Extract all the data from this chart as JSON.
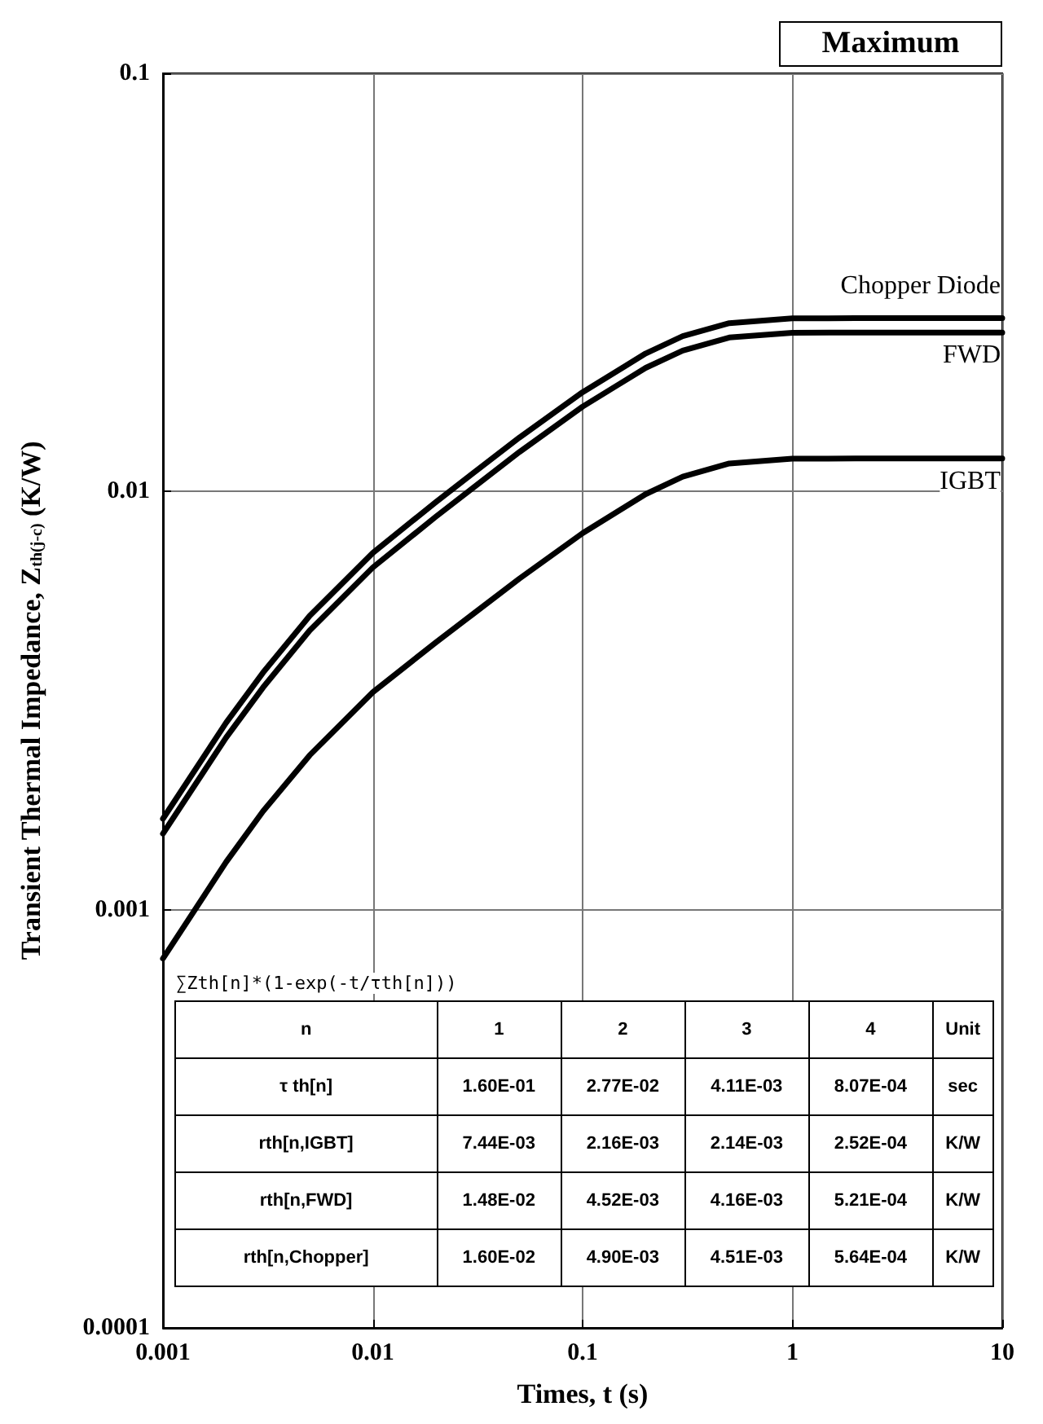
{
  "chart_data": {
    "type": "line",
    "xlabel": "Times, t (s)",
    "ylabel": "Transient Thermal Impedance, Z$_{th(j-c)}$ (K/W)",
    "x": [
      0.001,
      0.002,
      0.003,
      0.005,
      0.01,
      0.02,
      0.03,
      0.05,
      0.1,
      0.2,
      0.3,
      0.5,
      1,
      2,
      5,
      10
    ],
    "series": [
      {
        "name": "Chopper Diode",
        "color": "#000000",
        "values": [
          0.00165,
          0.0028,
          0.00369,
          0.00504,
          0.00713,
          0.00944,
          0.01105,
          0.01346,
          0.01728,
          0.02139,
          0.02352,
          0.02527,
          0.02594,
          0.02597,
          0.02597,
          0.02597
        ]
      },
      {
        "name": "FWD",
        "color": "#000000",
        "values": [
          0.00152,
          0.00258,
          0.0034,
          0.00465,
          0.00658,
          0.00871,
          0.0102,
          0.01243,
          0.01596,
          0.01976,
          0.02173,
          0.02335,
          0.02397,
          0.024,
          0.024,
          0.024
        ]
      },
      {
        "name": "IGBT",
        "color": "#000000",
        "values": [
          0.000764,
          0.0013,
          0.00172,
          0.00234,
          0.00331,
          0.00436,
          0.00509,
          0.00619,
          0.00795,
          0.00986,
          0.01085,
          0.01167,
          0.01198,
          0.01199,
          0.01199,
          0.01199
        ]
      }
    ],
    "log": "xy",
    "xlim": [
      0.001,
      10
    ],
    "ylim": [
      0.0001,
      0.1
    ],
    "xticks": [
      0.001,
      0.01,
      0.1,
      1,
      10
    ],
    "yticks": [
      0.0001,
      0.001,
      0.01,
      0.1
    ],
    "grid": true,
    "legend": false,
    "marker": "none",
    "line_style": "solid",
    "annotations": [
      "Maximum",
      "∑Zth[n]*(1-exp(-t/τth[n]))",
      "n",
      "1",
      "2",
      "3",
      "4",
      "Unit",
      "τ th[n]",
      "1.60E-01",
      "2.77E-02",
      "4.11E-03",
      "8.07E-04",
      "sec",
      "rth[n,IGBT]",
      "7.44E-03",
      "2.16E-03",
      "2.14E-03",
      "2.52E-04",
      "K/W",
      "rth[n,FWD]",
      "1.48E-02",
      "4.52E-03",
      "4.16E-03",
      "5.21E-04",
      "K/W",
      "rth[n,Chopper]",
      "1.60E-02",
      "4.90E-03",
      "4.51E-03",
      "5.64E-04",
      "K/W"
    ]
  }
}
